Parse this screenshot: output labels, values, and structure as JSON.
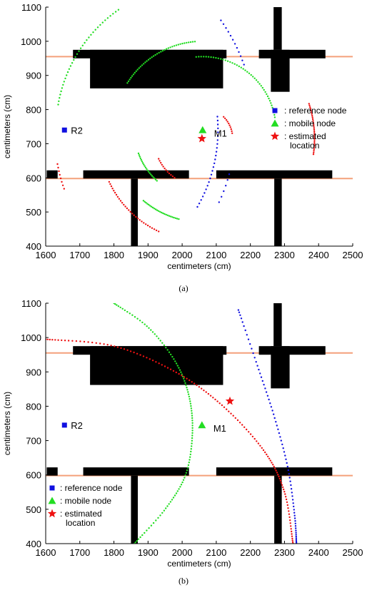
{
  "colors": {
    "reference": "#1010e0",
    "mobile": "#22dd22",
    "estimated": "#ee1111",
    "wall": "#000000",
    "floorline": "#f4a07a"
  },
  "chart_data": [
    {
      "type": "scatter",
      "caption": "(a)",
      "xlabel": "centimeters (cm)",
      "ylabel": "centimeters (cm)",
      "xlim": [
        1600,
        2500
      ],
      "ylim": [
        400,
        1100
      ],
      "xticks": [
        1600,
        1700,
        1800,
        1900,
        2000,
        2100,
        2200,
        2300,
        2400,
        2500
      ],
      "yticks": [
        400,
        500,
        600,
        700,
        800,
        900,
        1000,
        1100
      ],
      "grid": false,
      "legend_position": "right-middle",
      "legend": [
        {
          "marker": "square",
          "color_key": "reference",
          "label": ": reference node"
        },
        {
          "marker": "triangle",
          "color_key": "mobile",
          "label": ": mobile node"
        },
        {
          "marker": "star",
          "color_key": "estimated",
          "label": ": estimated location"
        }
      ],
      "reference_nodes": [
        {
          "label": "R2",
          "x": 1655,
          "y": 740
        }
      ],
      "mobile_nodes": [
        {
          "label": "M1",
          "x": 2060,
          "y": 740
        }
      ],
      "estimated_locations": [
        {
          "x": 2058,
          "y": 715
        }
      ],
      "floor_lines": [
        {
          "y": 955,
          "x": [
            1600,
            2500
          ]
        },
        {
          "y": 598,
          "x": [
            1600,
            2500
          ]
        }
      ],
      "walls": [
        {
          "x": [
            1680,
            2130
          ],
          "y": [
            950,
            975
          ]
        },
        {
          "x": [
            1730,
            2120
          ],
          "y": [
            862,
            975
          ]
        },
        {
          "x": [
            2225,
            2420
          ],
          "y": [
            950,
            975
          ]
        },
        {
          "x": [
            2260,
            2315
          ],
          "y": [
            852,
            975
          ]
        },
        {
          "x": [
            2268,
            2292
          ],
          "y": [
            975,
            1105
          ]
        },
        {
          "x": [
            1603,
            1635
          ],
          "y": [
            598,
            622
          ]
        },
        {
          "x": [
            1710,
            2020
          ],
          "y": [
            598,
            622
          ]
        },
        {
          "x": [
            2100,
            2440
          ],
          "y": [
            598,
            622
          ]
        },
        {
          "x": [
            1850,
            1870
          ],
          "y": [
            400,
            598
          ]
        },
        {
          "x": [
            2270,
            2292
          ],
          "y": [
            400,
            598
          ]
        }
      ],
      "arcs": [
        {
          "color_key": "mobile",
          "cx": 2060,
          "cy": 740,
          "r": 430,
          "a_start": -170,
          "a_end": -125,
          "n": 35
        },
        {
          "color_key": "mobile",
          "cx": 2060,
          "cy": 740,
          "r": 260,
          "a_start": -148,
          "a_end": -95,
          "n": 40
        },
        {
          "color_key": "mobile",
          "cx": 2060,
          "cy": 740,
          "r": 270,
          "a_start": 105,
          "a_end": 130,
          "n": 25
        },
        {
          "color_key": "mobile",
          "cx": 2060,
          "cy": 740,
          "r": 215,
          "a_start": -95,
          "a_end": -10,
          "n": 45
        },
        {
          "color_key": "mobile",
          "cx": 2060,
          "cy": 740,
          "r": 200,
          "a_start": 132,
          "a_end": 160,
          "n": 20
        },
        {
          "color_key": "reference",
          "cx": 1655,
          "cy": 740,
          "r": 450,
          "a_start": -5,
          "a_end": 30,
          "n": 25
        },
        {
          "color_key": "reference",
          "cx": 1655,
          "cy": 740,
          "r": 560,
          "a_start": -35,
          "a_end": -20,
          "n": 12
        },
        {
          "color_key": "reference",
          "cx": 1655,
          "cy": 740,
          "r": 500,
          "a_start": 15,
          "a_end": 25,
          "n": 6
        },
        {
          "color_key": "estimated",
          "cx": 2058,
          "cy": 715,
          "r": 330,
          "a_start": -18,
          "a_end": 8,
          "n": 30
        },
        {
          "color_key": "estimated",
          "cx": 2058,
          "cy": 715,
          "r": 300,
          "a_start": 115,
          "a_end": 155,
          "n": 30
        },
        {
          "color_key": "estimated",
          "cx": 2058,
          "cy": 715,
          "r": 140,
          "a_start": 125,
          "a_end": 155,
          "n": 12
        },
        {
          "color_key": "estimated",
          "cx": 2058,
          "cy": 715,
          "r": 90,
          "a_start": -45,
          "a_end": -10,
          "n": 10
        },
        {
          "color_key": "estimated",
          "cx": 2058,
          "cy": 715,
          "r": 430,
          "a_start": 160,
          "a_end": 170,
          "n": 8
        }
      ]
    },
    {
      "type": "scatter",
      "caption": "(b)",
      "xlabel": "centimeters (cm)",
      "ylabel": "centimeters (cm)",
      "xlim": [
        1600,
        2500
      ],
      "ylim": [
        400,
        1100
      ],
      "xticks": [
        1600,
        1700,
        1800,
        1900,
        2000,
        2100,
        2200,
        2300,
        2400,
        2500
      ],
      "yticks": [
        400,
        500,
        600,
        700,
        800,
        900,
        1000,
        1100
      ],
      "grid": false,
      "legend_position": "bottom-left",
      "legend": [
        {
          "marker": "square",
          "color_key": "reference",
          "label": ": reference node"
        },
        {
          "marker": "triangle",
          "color_key": "mobile",
          "label": ": mobile node"
        },
        {
          "marker": "star",
          "color_key": "estimated",
          "label": ": estimated location"
        }
      ],
      "reference_nodes": [
        {
          "label": "R2",
          "x": 1655,
          "y": 745
        }
      ],
      "mobile_nodes": [
        {
          "label": "M1",
          "x": 2058,
          "y": 745
        }
      ],
      "estimated_locations": [
        {
          "x": 2140,
          "y": 815
        }
      ],
      "floor_lines": [
        {
          "y": 955,
          "x": [
            1600,
            2500
          ]
        },
        {
          "y": 598,
          "x": [
            1600,
            2500
          ]
        }
      ],
      "walls": [
        {
          "x": [
            1680,
            2130
          ],
          "y": [
            950,
            975
          ]
        },
        {
          "x": [
            1730,
            2120
          ],
          "y": [
            862,
            975
          ]
        },
        {
          "x": [
            2225,
            2420
          ],
          "y": [
            950,
            975
          ]
        },
        {
          "x": [
            2260,
            2315
          ],
          "y": [
            852,
            975
          ]
        },
        {
          "x": [
            2268,
            2292
          ],
          "y": [
            975,
            1105
          ]
        },
        {
          "x": [
            1603,
            1635
          ],
          "y": [
            598,
            622
          ]
        },
        {
          "x": [
            1710,
            2020
          ],
          "y": [
            598,
            622
          ]
        },
        {
          "x": [
            2100,
            2440
          ],
          "y": [
            598,
            622
          ]
        },
        {
          "x": [
            1850,
            1870
          ],
          "y": [
            400,
            598
          ]
        },
        {
          "x": [
            2270,
            2292
          ],
          "y": [
            400,
            598
          ]
        }
      ],
      "curves": [
        {
          "color_key": "mobile",
          "points": [
            [
              1800,
              1100
            ],
            [
              1900,
              1030
            ],
            [
              1980,
              930
            ],
            [
              2020,
              830
            ],
            [
              2030,
              720
            ],
            [
              2010,
              600
            ],
            [
              1950,
              500
            ],
            [
              1860,
              400
            ]
          ],
          "n": 110
        },
        {
          "color_key": "reference",
          "points": [
            [
              2165,
              1080
            ],
            [
              2220,
              920
            ],
            [
              2270,
              770
            ],
            [
              2310,
              620
            ],
            [
              2330,
              480
            ],
            [
              2335,
              400
            ]
          ],
          "n": 70
        },
        {
          "color_key": "estimated",
          "points": [
            [
              1600,
              995
            ],
            [
              1800,
              975
            ],
            [
              1980,
              900
            ],
            [
              2120,
              800
            ],
            [
              2240,
              670
            ],
            [
              2300,
              550
            ],
            [
              2325,
              400
            ]
          ],
          "n": 120
        }
      ]
    }
  ]
}
